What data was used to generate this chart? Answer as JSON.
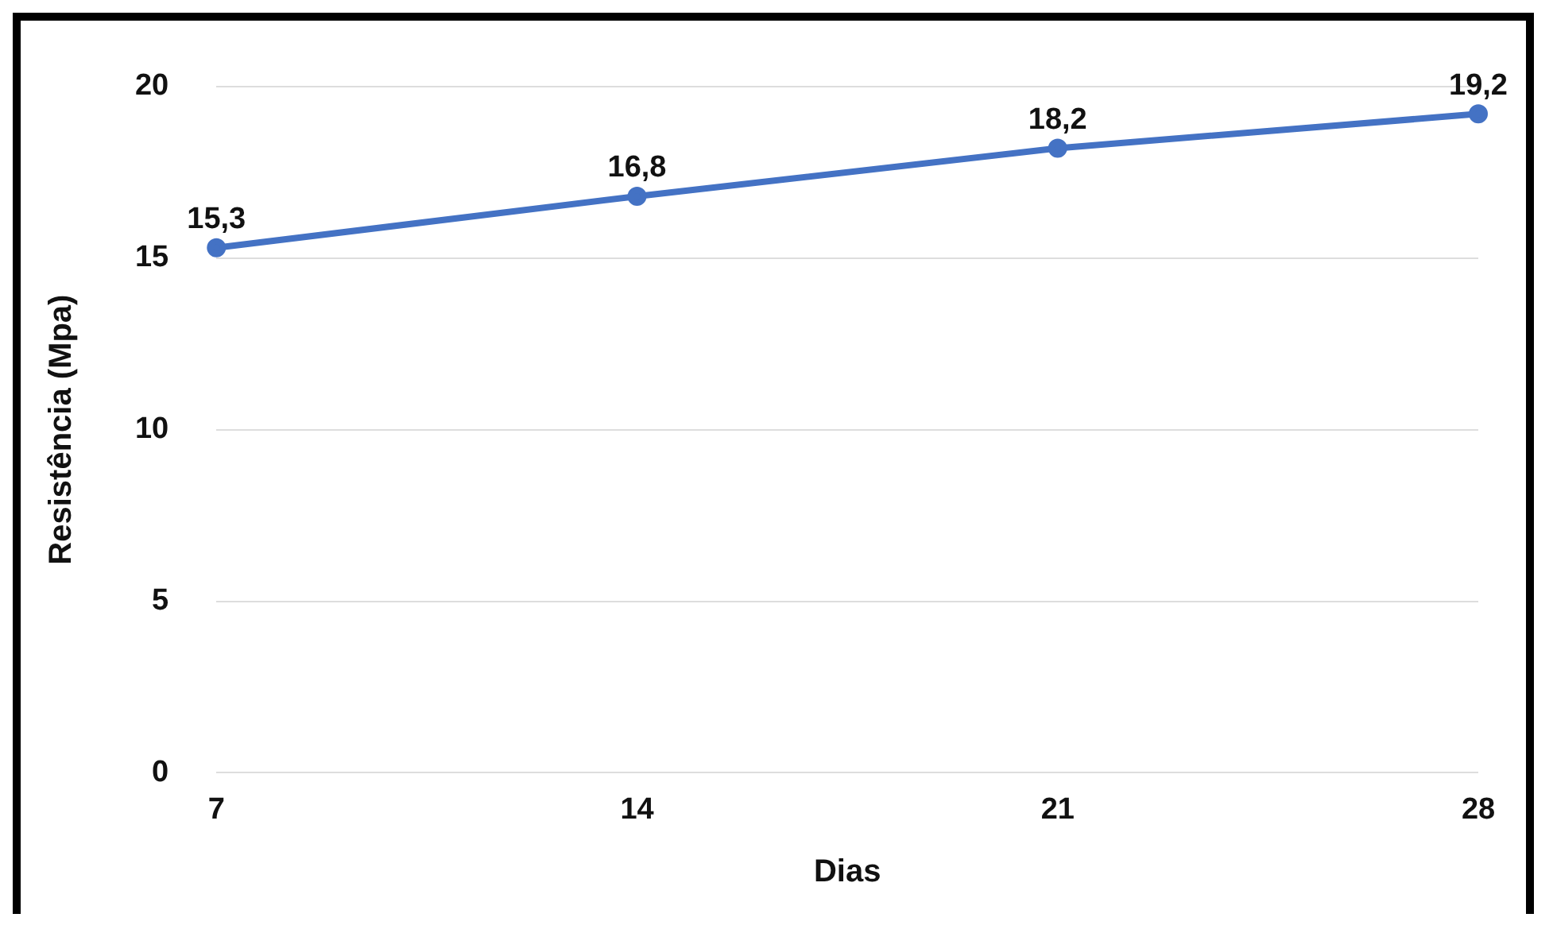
{
  "chart_data": {
    "type": "line",
    "xlabel": "Dias",
    "ylabel": "Resistência (Mpa)",
    "categories": [
      "7",
      "14",
      "21",
      "28"
    ],
    "series": [
      {
        "color": "#4472c4",
        "values": [
          15.3,
          16.8,
          18.2,
          19.2
        ]
      }
    ],
    "value_labels": [
      "15,3",
      "16,8",
      "18,2",
      "19,2"
    ],
    "ylim": [
      0,
      20
    ],
    "yticks": [
      0,
      5,
      10,
      15,
      20
    ],
    "grid": "y",
    "legend": false,
    "marker": "circle",
    "line_style": "solid"
  }
}
